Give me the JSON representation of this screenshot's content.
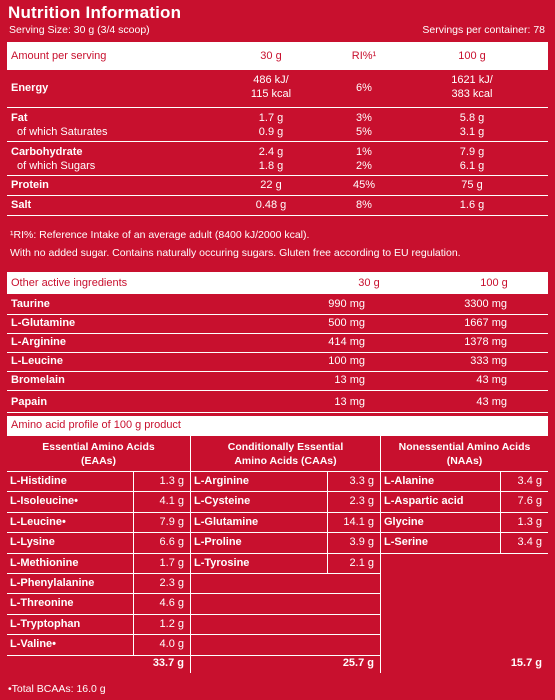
{
  "header": {
    "title": "Nutrition Information",
    "serving_size": "Serving Size: 30 g (3/4 scoop)",
    "servings_per_container": "Servings per container: 78"
  },
  "nutrition": {
    "columns": [
      "Amount per serving",
      "30 g",
      "RI%¹",
      "100 g"
    ],
    "rows": [
      {
        "name": "Energy",
        "sub": "",
        "v30": "486 kJ/",
        "v30b": "115 kcal",
        "ri": "6%",
        "v100": "1621 kJ/",
        "v100b": "383 kcal"
      },
      {
        "name": "Fat",
        "sub": "of which Saturates",
        "v30": "1.7 g",
        "v30b": "0.9 g",
        "ri": "3%",
        "rib": "5%",
        "v100": "5.8 g",
        "v100b": "3.1 g"
      },
      {
        "name": "Carbohydrate",
        "sub": "of which Sugars",
        "v30": "2.4 g",
        "v30b": "1.8 g",
        "ri": "1%",
        "rib": "2%",
        "v100": "7.9 g",
        "v100b": "6.1 g"
      },
      {
        "name": "Protein",
        "v30": "22 g",
        "ri": "45%",
        "v100": "75 g"
      },
      {
        "name": "Salt",
        "v30": "0.48 g",
        "ri": "8%",
        "v100": "1.6 g"
      }
    ]
  },
  "notes": [
    "¹RI%: Reference Intake of an average adult (8400 kJ/2000 kcal).",
    "With no added sugar. Contains naturally occuring sugars. Gluten free according to EU regulation."
  ],
  "active_ingredients": {
    "columns": [
      "Other active ingredients",
      "30 g",
      "100 g"
    ],
    "rows": [
      {
        "name": "Taurine",
        "v30": "990 mg",
        "v100": "3300 mg"
      },
      {
        "name": "L-Glutamine",
        "v30": "500 mg",
        "v100": "1667 mg"
      },
      {
        "name": "L-Arginine",
        "v30": "414 mg",
        "v100": "1378 mg"
      },
      {
        "name": "L-Leucine",
        "v30": "100 mg",
        "v100": "333 mg"
      },
      {
        "name": "Bromelain",
        "v30": "13 mg",
        "v100": "43 mg"
      },
      {
        "name": "Papain",
        "v30": "13 mg",
        "v100": "43 mg"
      }
    ]
  },
  "amino": {
    "heading": "Amino acid profile of 100 g product",
    "essential": {
      "title_1": "Essential Amino Acids",
      "title_2": "(EAAs)",
      "rows": [
        {
          "name": "L-Histidine",
          "value": "1.3 g"
        },
        {
          "name": "L-Isoleucine•",
          "value": "4.1 g"
        },
        {
          "name": "L-Leucine•",
          "value": "7.9 g"
        },
        {
          "name": "L-Lysine",
          "value": "6.6 g"
        },
        {
          "name": "L-Methionine",
          "value": "1.7 g"
        },
        {
          "name": "L-Phenylalanine",
          "value": "2.3 g"
        },
        {
          "name": "L-Threonine",
          "value": "4.6 g"
        },
        {
          "name": "L-Tryptophan",
          "value": "1.2 g"
        },
        {
          "name": "L-Valine•",
          "value": "4.0 g"
        }
      ],
      "total": "33.7 g"
    },
    "conditional": {
      "title_1": "Conditionally Essential",
      "title_2": "Amino Acids (CAAs)",
      "rows": [
        {
          "name": "L-Arginine",
          "value": "3.3 g"
        },
        {
          "name": "L-Cysteine",
          "value": "2.3 g"
        },
        {
          "name": "L-Glutamine",
          "value": "14.1 g"
        },
        {
          "name": "L-Proline",
          "value": "3.9 g"
        },
        {
          "name": "L-Tyrosine",
          "value": "2.1 g"
        }
      ],
      "total": "25.7 g"
    },
    "nonessential": {
      "title_1": "Nonessential Amino Acids",
      "title_2": "(NAAs)",
      "rows": [
        {
          "name": "L-Alanine",
          "value": "3.4 g"
        },
        {
          "name": "L-Aspartic acid",
          "value": "7.6 g"
        },
        {
          "name": "Glycine",
          "value": "1.3 g"
        },
        {
          "name": "L-Serine",
          "value": "3.4 g"
        }
      ],
      "total": "15.7 g"
    },
    "bcaa_total": "•Total BCAAs: 16.0 g"
  }
}
